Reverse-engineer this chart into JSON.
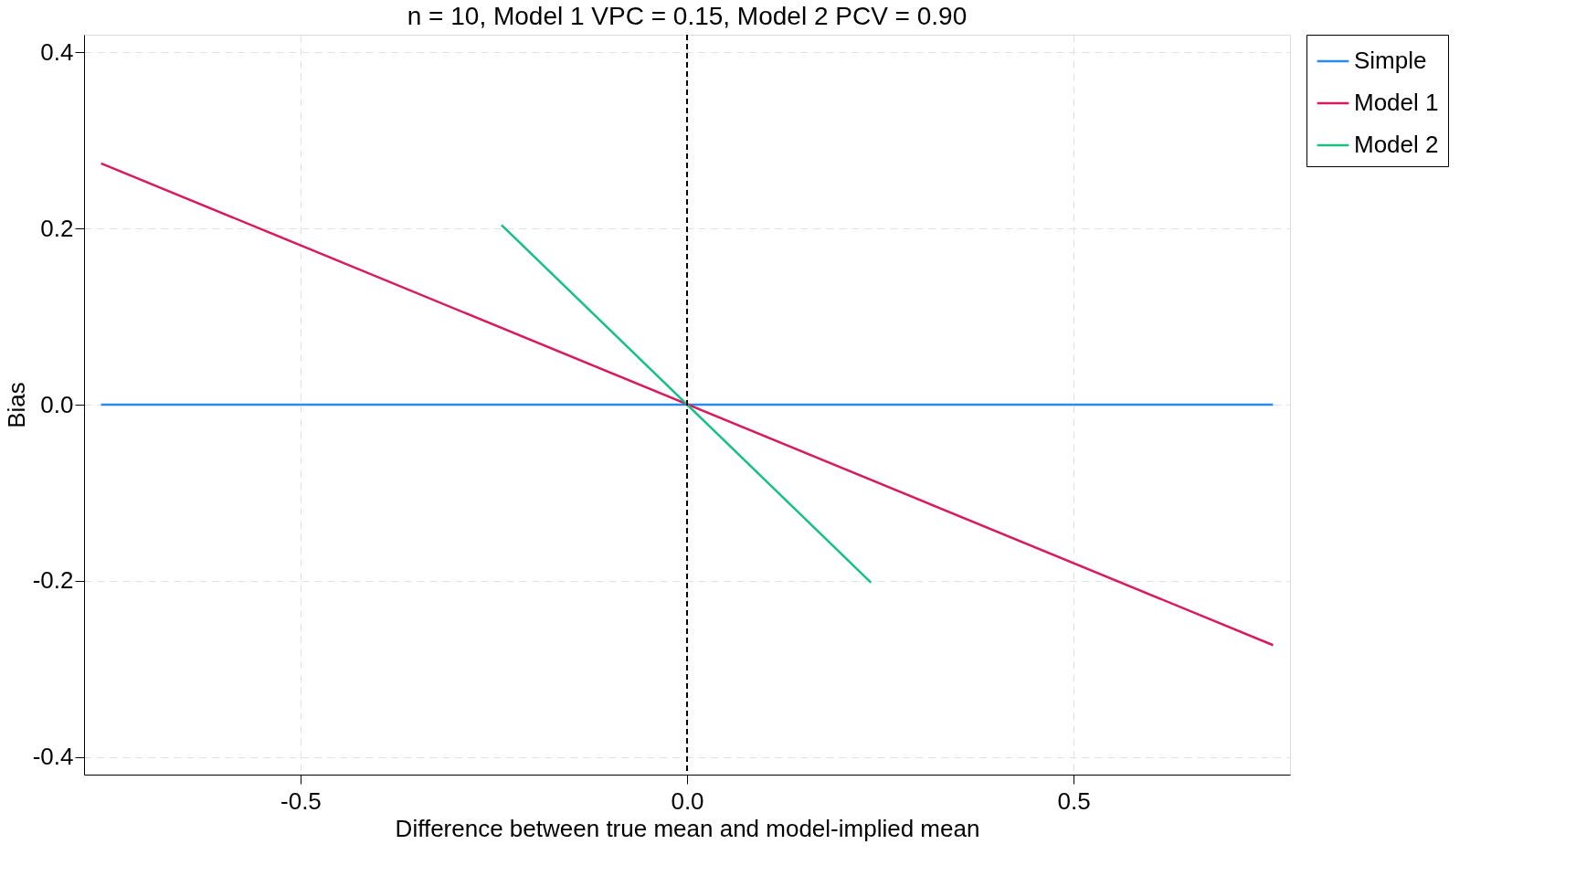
{
  "chart_data": {
    "type": "line",
    "title": "n = 10, Model 1 VPC = 0.15, Model 2 PCV = 0.90",
    "xlabel": "Difference between true mean and model-implied mean",
    "ylabel": "Bias",
    "xlim": [
      -0.78,
      0.78
    ],
    "ylim": [
      -0.42,
      0.42
    ],
    "xticks": [
      -0.5,
      {
        "value": 0,
        "label": "0.0"
      },
      0.5
    ],
    "yticks": [
      -0.4,
      -0.2,
      {
        "value": 0,
        "label": "0.0"
      },
      0.2,
      0.4
    ],
    "grid": true,
    "legend": "right",
    "line_style": "solid",
    "series": [
      {
        "name": "Simple",
        "color": "#2b8cee",
        "x": [
          -0.758,
          0.758
        ],
        "values": [
          0,
          0
        ]
      },
      {
        "name": "Model 1",
        "color": "#d81b60",
        "x": [
          -0.758,
          0.758
        ],
        "values": [
          0.274,
          -0.273
        ]
      },
      {
        "name": "Model 2",
        "color": "#16c083",
        "x": [
          -0.24,
          0.238
        ],
        "values": [
          0.204,
          -0.202
        ]
      }
    ],
    "ref_lines": [
      {
        "axis": "x",
        "value": 0,
        "color": "#000000",
        "line_style": "dashed"
      }
    ]
  }
}
